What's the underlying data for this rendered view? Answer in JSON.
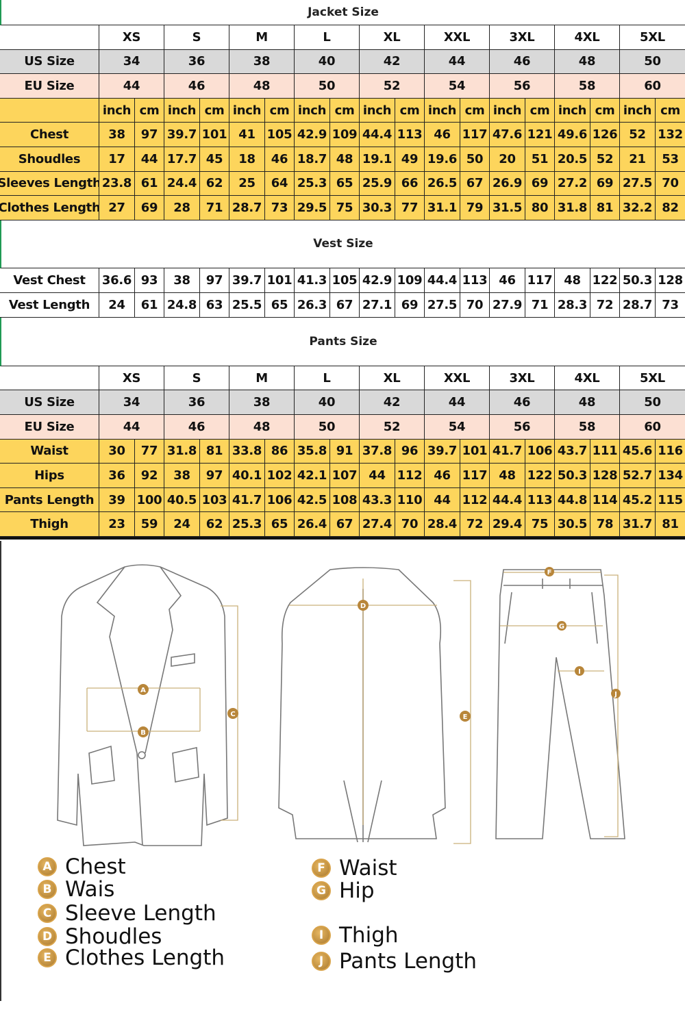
{
  "colors": {
    "gray": "#d9d9d9",
    "pink": "#fce0d3",
    "yellow": "#fdd55c",
    "badge": "#b8863a"
  },
  "sizes": [
    "XS",
    "S",
    "M",
    "L",
    "XL",
    "XXL",
    "3XL",
    "4XL",
    "5XL"
  ],
  "units": {
    "inch": "inch",
    "cm": "cm"
  },
  "jacket": {
    "title": "Jacket Size",
    "us": {
      "label": "US Size",
      "values": [
        "34",
        "36",
        "38",
        "40",
        "42",
        "44",
        "46",
        "48",
        "50"
      ]
    },
    "eu": {
      "label": "EU Size",
      "values": [
        "44",
        "46",
        "48",
        "50",
        "52",
        "54",
        "56",
        "58",
        "60"
      ]
    },
    "rows": [
      {
        "label": "Chest",
        "values": [
          "38",
          "97",
          "39.7",
          "101",
          "41",
          "105",
          "42.9",
          "109",
          "44.4",
          "113",
          "46",
          "117",
          "47.6",
          "121",
          "49.6",
          "126",
          "52",
          "132"
        ]
      },
      {
        "label": "Shoudles",
        "values": [
          "17",
          "44",
          "17.7",
          "45",
          "18",
          "46",
          "18.7",
          "48",
          "19.1",
          "49",
          "19.6",
          "50",
          "20",
          "51",
          "20.5",
          "52",
          "21",
          "53"
        ]
      },
      {
        "label": "Sleeves Length",
        "values": [
          "23.8",
          "61",
          "24.4",
          "62",
          "25",
          "64",
          "25.3",
          "65",
          "25.9",
          "66",
          "26.5",
          "67",
          "26.9",
          "69",
          "27.2",
          "69",
          "27.5",
          "70"
        ]
      },
      {
        "label": "Clothes Length",
        "values": [
          "27",
          "69",
          "28",
          "71",
          "28.7",
          "73",
          "29.5",
          "75",
          "30.3",
          "77",
          "31.1",
          "79",
          "31.5",
          "80",
          "31.8",
          "81",
          "32.2",
          "82"
        ]
      }
    ]
  },
  "vest": {
    "title": "Vest Size",
    "rows": [
      {
        "label": "Vest Chest",
        "values": [
          "36.6",
          "93",
          "38",
          "97",
          "39.7",
          "101",
          "41.3",
          "105",
          "42.9",
          "109",
          "44.4",
          "113",
          "46",
          "117",
          "48",
          "122",
          "50.3",
          "128"
        ]
      },
      {
        "label": "Vest Length",
        "values": [
          "24",
          "61",
          "24.8",
          "63",
          "25.5",
          "65",
          "26.3",
          "67",
          "27.1",
          "69",
          "27.5",
          "70",
          "27.9",
          "71",
          "28.3",
          "72",
          "28.7",
          "73"
        ]
      }
    ]
  },
  "pants": {
    "title": "Pants Size",
    "us": {
      "label": "US Size",
      "values": [
        "34",
        "36",
        "38",
        "40",
        "42",
        "44",
        "46",
        "48",
        "50"
      ]
    },
    "eu": {
      "label": "EU Size",
      "values": [
        "44",
        "46",
        "48",
        "50",
        "52",
        "54",
        "56",
        "58",
        "60"
      ]
    },
    "rows": [
      {
        "label": "Waist",
        "values": [
          "30",
          "77",
          "31.8",
          "81",
          "33.8",
          "86",
          "35.8",
          "91",
          "37.8",
          "96",
          "39.7",
          "101",
          "41.7",
          "106",
          "43.7",
          "111",
          "45.6",
          "116"
        ]
      },
      {
        "label": "Hips",
        "values": [
          "36",
          "92",
          "38",
          "97",
          "40.1",
          "102",
          "42.1",
          "107",
          "44",
          "112",
          "46",
          "117",
          "48",
          "122",
          "50.3",
          "128",
          "52.7",
          "134"
        ]
      },
      {
        "label": "Pants Length",
        "values": [
          "39",
          "100",
          "40.5",
          "103",
          "41.7",
          "106",
          "42.5",
          "108",
          "43.3",
          "110",
          "44",
          "112",
          "44.4",
          "113",
          "44.8",
          "114",
          "45.2",
          "115"
        ]
      },
      {
        "label": "Thigh",
        "values": [
          "23",
          "59",
          "24",
          "62",
          "25.3",
          "65",
          "26.4",
          "67",
          "27.4",
          "70",
          "28.4",
          "72",
          "29.4",
          "75",
          "30.5",
          "78",
          "31.7",
          "81"
        ]
      }
    ]
  },
  "legend": [
    {
      "letter": "A",
      "text": "Chest"
    },
    {
      "letter": "B",
      "text": "Wais"
    },
    {
      "letter": "C",
      "text": "Sleeve Length"
    },
    {
      "letter": "D",
      "text": "Shoudles"
    },
    {
      "letter": "E",
      "text": "Clothes Length"
    },
    {
      "letter": "F",
      "text": "Waist"
    },
    {
      "letter": "G",
      "text": "Hip"
    },
    {
      "letter": "I",
      "text": "Thigh"
    },
    {
      "letter": "J",
      "text": "Pants Length"
    }
  ]
}
